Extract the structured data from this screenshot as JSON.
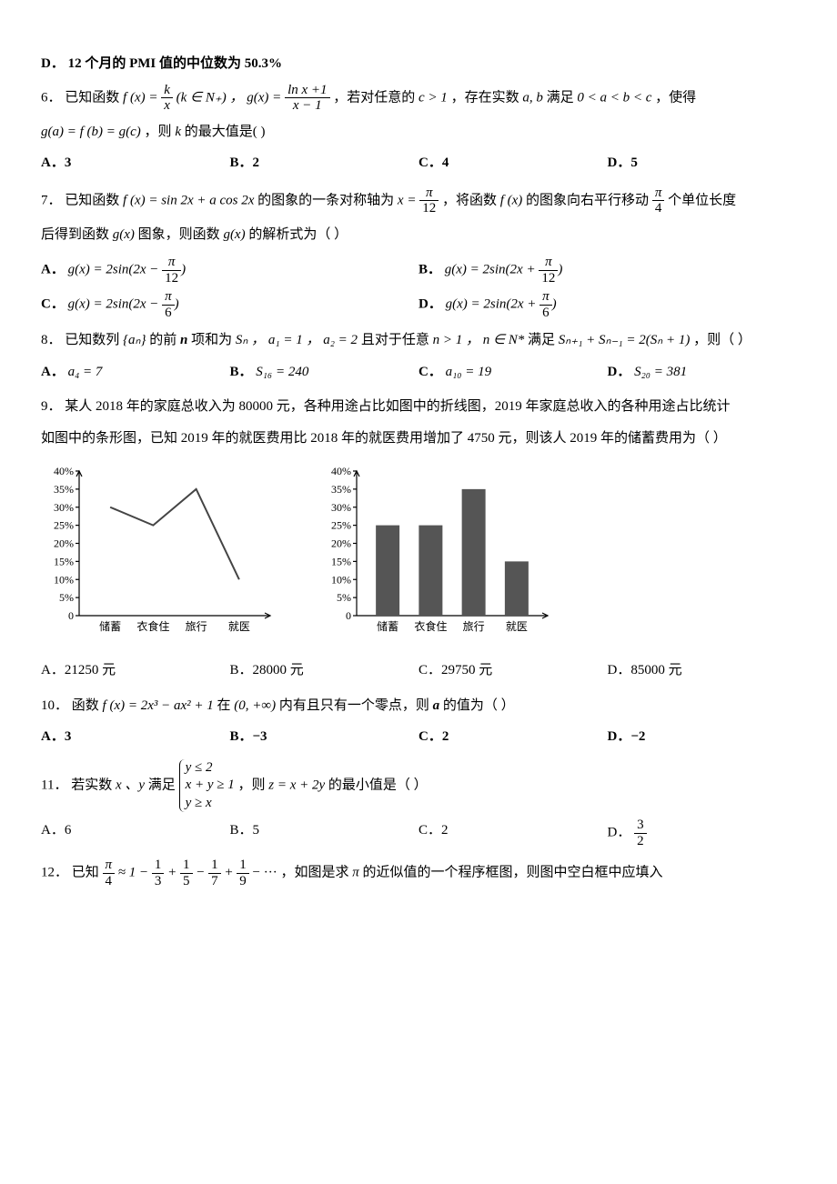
{
  "q_d": {
    "label": "D．",
    "text": "12 个月的 PMI 值的中位数为 50.3%"
  },
  "q6": {
    "num": "6．",
    "pre": "已知函数 ",
    "fx": "f (x) = ",
    "k": "k",
    "over_x": "x",
    "kn": "(k ∈ N₊) ，",
    "gx": "g(x) = ",
    "lnx1": "ln x +1",
    "xm1": "x − 1",
    "mid": "，若对任意的 ",
    "c1": "c > 1",
    "mid2": "，存在实数 ",
    "ab": "a, b",
    "mid3": " 满足 ",
    "ineq": "0 < a < b < c",
    "mid4": " ，使得",
    "line2a": "g(a) = f (b) = g(c)",
    "line2b": " ，则 ",
    "kvar": "k",
    "line2c": " 的最大值是(       )",
    "A": "A．3",
    "B": "B．2",
    "C": "C．4",
    "D": "D．5"
  },
  "q7": {
    "num": "7．",
    "pre": "已知函数 ",
    "fx": "f (x) = sin 2x + a cos 2x",
    "mid1": " 的图象的一条对称轴为 ",
    "x_eq": "x = ",
    "pi": "π",
    "twelve": "12",
    "mid2": " ，将函数 ",
    "fxv": "f (x)",
    "mid3": " 的图象向右平行移动 ",
    "pi2": "π",
    "four": "4",
    "mid4": " 个单位长度",
    "line2a": "后得到函数 ",
    "gx": "g(x)",
    "line2b": " 图象，则函数 ",
    "line2c": " 的解析式为（     ）",
    "A_l": "A．",
    "A_eq": "g(x) = 2sin(2x − ",
    "A_pi": "π",
    "A_den": "12",
    "A_r": ")",
    "B_l": "B．",
    "B_eq": "g(x) = 2sin(2x + ",
    "B_pi": "π",
    "B_den": "12",
    "B_r": ")",
    "C_l": "C．",
    "C_eq": "g(x) = 2sin(2x − ",
    "C_pi": "π",
    "C_den": "6",
    "C_r": ")",
    "D_l": "D．",
    "D_eq": "g(x) = 2sin(2x + ",
    "D_pi": "π",
    "D_den": "6",
    "D_r": ")"
  },
  "q8": {
    "num": "8．",
    "pre": "已知数列 ",
    "an": "{aₙ}",
    "mid1": " 的前 ",
    "n": "n",
    "mid2": " 项和为 ",
    "Sn": "Sₙ ，",
    "a1": "a₁ = 1 ，",
    "a2": "a₂ = 2",
    "mid3": " 且对于任意 ",
    "ngt1": "n > 1 ，",
    "nN": "n ∈ N*",
    "mid4": " 满足 ",
    "rec": "Sₙ₊₁ + Sₙ₋₁ = 2(Sₙ + 1)",
    "tail": " ，则（       ）",
    "A": "A．",
    "A_eq": "a₄ = 7",
    "B": "B．",
    "B_eq": "S₁₆ = 240",
    "C": "C．",
    "C_eq": "a₁₀ = 19",
    "D": "D．",
    "D_eq": "S₂₀ = 381"
  },
  "q9": {
    "num": "9．",
    "line1": "某人 2018 年的家庭总收入为 80000 元，各种用途占比如图中的折线图，2019 年家庭总收入的各种用途占比统计",
    "line2": "如图中的条形图，已知 2019 年的就医费用比 2018 年的就医费用增加了 4750 元，则该人 2019 年的储蓄费用为（     ）",
    "A": "A．21250 元",
    "B": "B．28000 元",
    "C": "C．29750 元",
    "D": "D．85000 元"
  },
  "chart_line": {
    "type": "line",
    "categories": [
      "储蓄",
      "衣食住",
      "旅行",
      "就医"
    ],
    "values_pct": [
      30,
      25,
      35,
      10
    ],
    "ylim": [
      0,
      40
    ],
    "ytick_step": 5,
    "ytick_labels": [
      "0",
      "5%",
      "10%",
      "15%",
      "20%",
      "25%",
      "30%",
      "35%",
      "40%"
    ],
    "line_color": "#444444",
    "axis_color": "#000000",
    "background_color": "#ffffff"
  },
  "chart_bar": {
    "type": "bar",
    "categories": [
      "储蓄",
      "衣食住",
      "旅行",
      "就医"
    ],
    "values_pct": [
      25,
      25,
      35,
      15
    ],
    "ylim": [
      0,
      40
    ],
    "ytick_step": 5,
    "ytick_labels": [
      "0",
      "5%",
      "10%",
      "15%",
      "20%",
      "25%",
      "30%",
      "35%",
      "40%"
    ],
    "bar_color": "#555555",
    "bar_width": 0.55,
    "axis_color": "#000000",
    "background_color": "#ffffff"
  },
  "q10": {
    "num": "10．",
    "pre": "函数 ",
    "fx": "f (x) = 2x³ − ax² + 1",
    "mid": " 在 ",
    "int": "(0, +∞)",
    "mid2": " 内有且只有一个零点，则 ",
    "a": "a",
    "tail": " 的值为（     ）",
    "A": "A．3",
    "B": "B．−3",
    "C": "C．2",
    "D": "D．−2"
  },
  "q11": {
    "num": "11．",
    "pre": "若实数 ",
    "xy": "x 、y",
    "mid": " 满足 ",
    "c1": "y ≤ 2",
    "c2": "x + y ≥ 1",
    "c3": "y ≥ x",
    "mid2": "，则 ",
    "z": "z = x + 2y",
    "tail": " 的最小值是（     ）",
    "A": "A．6",
    "B": "B．5",
    "C": "C．2",
    "D": "D．",
    "D_num": "3",
    "D_den": "2"
  },
  "q12": {
    "num": "12．",
    "pre": "已知 ",
    "pi": "π",
    "four": "4",
    "approx": " ≈ 1 − ",
    "t1n": "1",
    "t1d": "3",
    "t_plus": " + ",
    "t_minus": " − ",
    "t2n": "1",
    "t2d": "5",
    "t3n": "1",
    "t3d": "7",
    "t4n": "1",
    "t4d": "9",
    "dots": " − ··· ，如图是求 ",
    "piv": "π",
    "tail": " 的近似值的一个程序框图，则图中空白框中应填入"
  }
}
